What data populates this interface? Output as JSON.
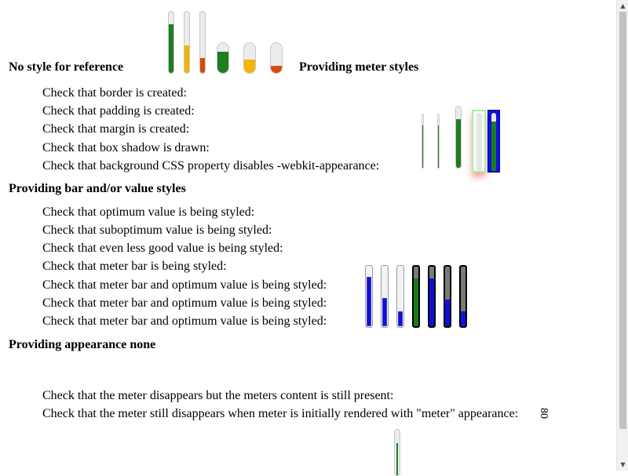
{
  "headings": {
    "no_style": "No style for reference",
    "meter_styles": "Providing meter styles",
    "bar_value_styles": "Providing bar and/or value styles",
    "appearance_none": "Providing appearance none"
  },
  "checks": {
    "border": "Check that border is created:",
    "padding": "Check that padding is created:",
    "margin": "Check that margin is created:",
    "box_shadow": "Check that box shadow is drawn:",
    "background": "Check that background CSS property disables -webkit-appearance:",
    "optimum": "Check that optimum value is being styled:",
    "suboptimum": "Check that suboptimum value is being styled:",
    "less_good": "Check that even less good value is being styled:",
    "meter_bar": "Check that meter bar is being styled:",
    "bar_optimum_1": "Check that meter bar and optimum value is being styled:",
    "bar_optimum_2": "Check that meter bar and optimum value is being styled:",
    "bar_optimum_3": "Check that meter bar and optimum value is being styled:",
    "disappears": "Check that the meter disappears but the meters content is still present:",
    "still_disappears": "Check that the meter still disappears when meter is initially rendered with \"meter\" appearance:"
  },
  "meter_content_text": "80",
  "colors": {
    "optimum": "#1e7e1e",
    "suboptimum": "#f4b400",
    "even_less_good": "#d9480f",
    "styled_blue": "#1010d8",
    "styled_green": "#1a7a1a"
  },
  "reference_meters": [
    {
      "kind": "thin",
      "value": 0.8,
      "level": "optimum"
    },
    {
      "kind": "thin",
      "value": 0.45,
      "level": "suboptimum"
    },
    {
      "kind": "thin",
      "value": 0.25,
      "level": "even_less_good"
    },
    {
      "kind": "wide",
      "value": 0.7,
      "level": "optimum"
    },
    {
      "kind": "wide",
      "value": 0.45,
      "level": "suboptimum"
    },
    {
      "kind": "wide",
      "value": 0.25,
      "level": "even_less_good"
    }
  ],
  "bar_value_meters": [
    {
      "style": "blue",
      "value": 0.8
    },
    {
      "style": "blue",
      "value": 0.45
    },
    {
      "style": "blue",
      "value": 0.25
    },
    {
      "style": "black",
      "value": 0.8,
      "fill": "#1a7a1a"
    },
    {
      "style": "black",
      "value": 0.8,
      "fill": "#1010d8"
    },
    {
      "style": "black",
      "value": 0.45,
      "fill": "#1010d8"
    },
    {
      "style": "black",
      "value": 0.25,
      "fill": "#1010d8"
    }
  ],
  "scrollbar": {
    "up_icon": "▲",
    "down_icon": "▼"
  }
}
